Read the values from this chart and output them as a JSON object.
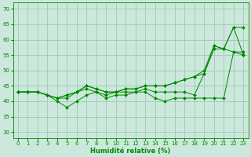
{
  "xlabel": "Humidité relative (%)",
  "xlim": [
    -0.5,
    23.5
  ],
  "ylim": [
    28,
    72
  ],
  "yticks": [
    30,
    35,
    40,
    45,
    50,
    55,
    60,
    65,
    70
  ],
  "xticks": [
    0,
    1,
    2,
    3,
    4,
    5,
    6,
    7,
    8,
    9,
    10,
    11,
    12,
    13,
    14,
    15,
    16,
    17,
    18,
    19,
    20,
    21,
    22,
    23
  ],
  "background_color": "#cce8dc",
  "grid_color": "#99ccb3",
  "line_color": "#008800",
  "series": [
    [
      43,
      43,
      43,
      42,
      40,
      38,
      40,
      42,
      43,
      41,
      42,
      42,
      43,
      43,
      41,
      40,
      41,
      41,
      41,
      41,
      41,
      41,
      56,
      55
    ],
    [
      43,
      43,
      43,
      42,
      41,
      41,
      43,
      44,
      43,
      42,
      43,
      43,
      43,
      44,
      43,
      43,
      43,
      43,
      42,
      49,
      57,
      57,
      56,
      56
    ],
    [
      43,
      43,
      43,
      42,
      41,
      42,
      43,
      45,
      44,
      43,
      43,
      44,
      44,
      45,
      45,
      45,
      46,
      47,
      48,
      49,
      58,
      57,
      64,
      55
    ],
    [
      43,
      43,
      43,
      42,
      41,
      42,
      43,
      45,
      44,
      43,
      43,
      44,
      44,
      45,
      45,
      45,
      46,
      47,
      48,
      50,
      58,
      57,
      64,
      64
    ]
  ]
}
